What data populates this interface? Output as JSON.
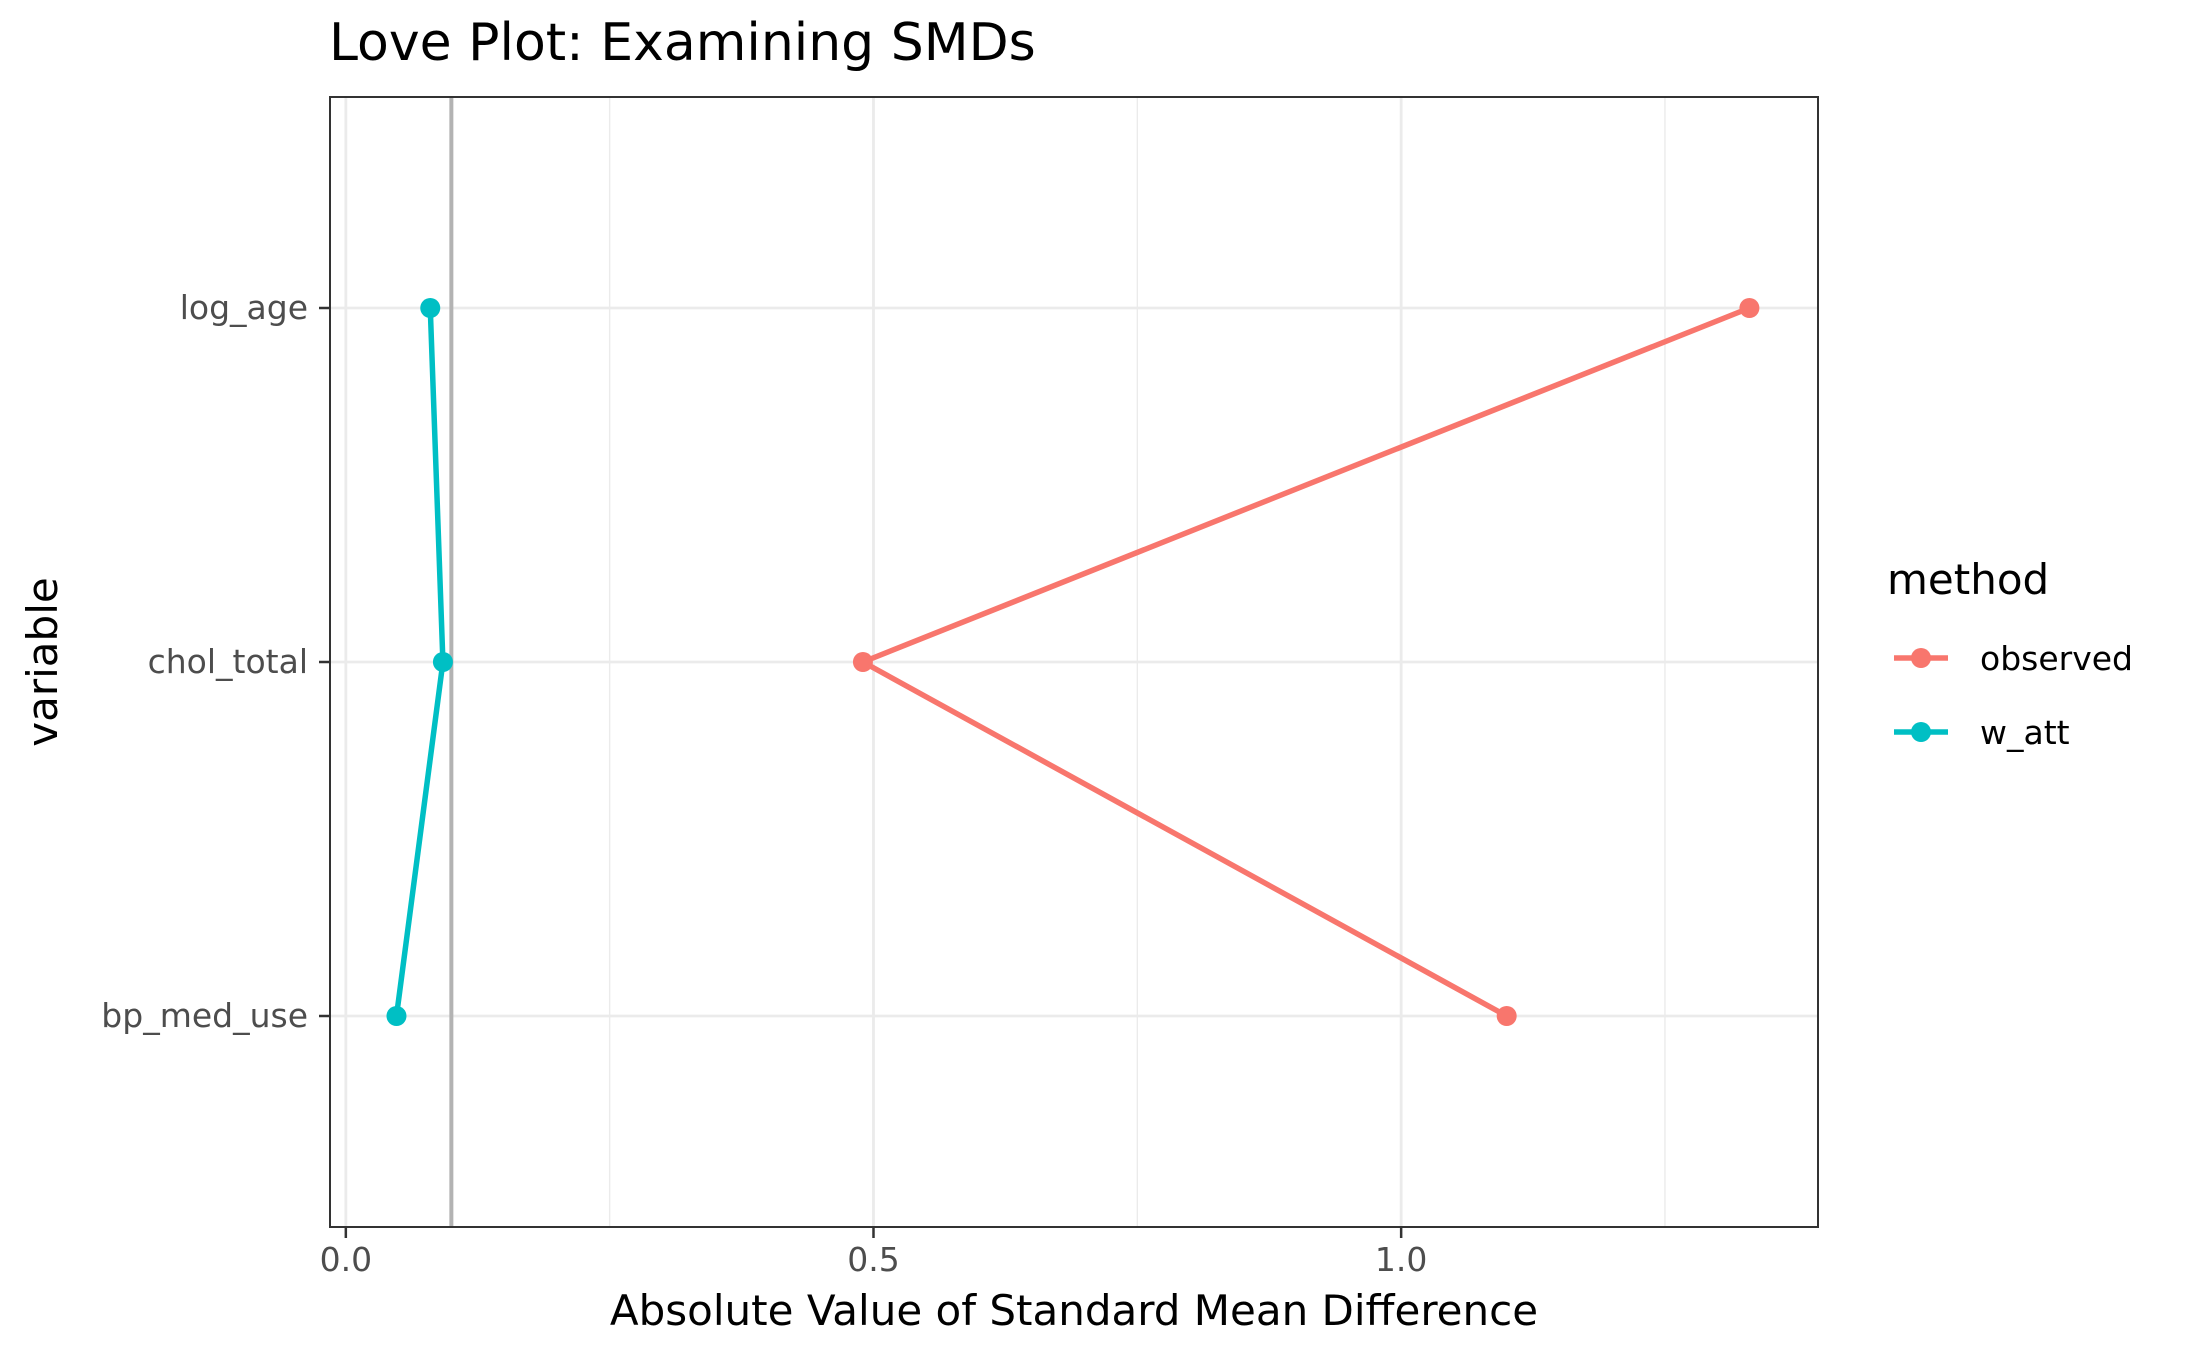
{
  "chart_data": {
    "type": "line",
    "title": "Love Plot: Examining SMDs",
    "xlabel": "Absolute Value of Standard Mean Difference",
    "ylabel": "variable",
    "categories": [
      "log_age",
      "chol_total",
      "bp_med_use"
    ],
    "x_ticks": [
      {
        "value": 0.0,
        "label": "0.0"
      },
      {
        "value": 0.5,
        "label": "0.5"
      },
      {
        "value": 1.0,
        "label": "1.0"
      }
    ],
    "xlim": [
      -0.015,
      1.395
    ],
    "reference_line": 0.1,
    "grid": true,
    "legend": {
      "title": "method",
      "position": "right"
    },
    "series": [
      {
        "name": "observed",
        "color": "#F8766D",
        "points": [
          {
            "variable": "log_age",
            "x": 1.33
          },
          {
            "variable": "chol_total",
            "x": 0.49
          },
          {
            "variable": "bp_med_use",
            "x": 1.1
          }
        ]
      },
      {
        "name": "w_att",
        "color": "#00BFC4",
        "points": [
          {
            "variable": "log_age",
            "x": 0.08
          },
          {
            "variable": "chol_total",
            "x": 0.092
          },
          {
            "variable": "bp_med_use",
            "x": 0.048
          }
        ]
      }
    ]
  }
}
